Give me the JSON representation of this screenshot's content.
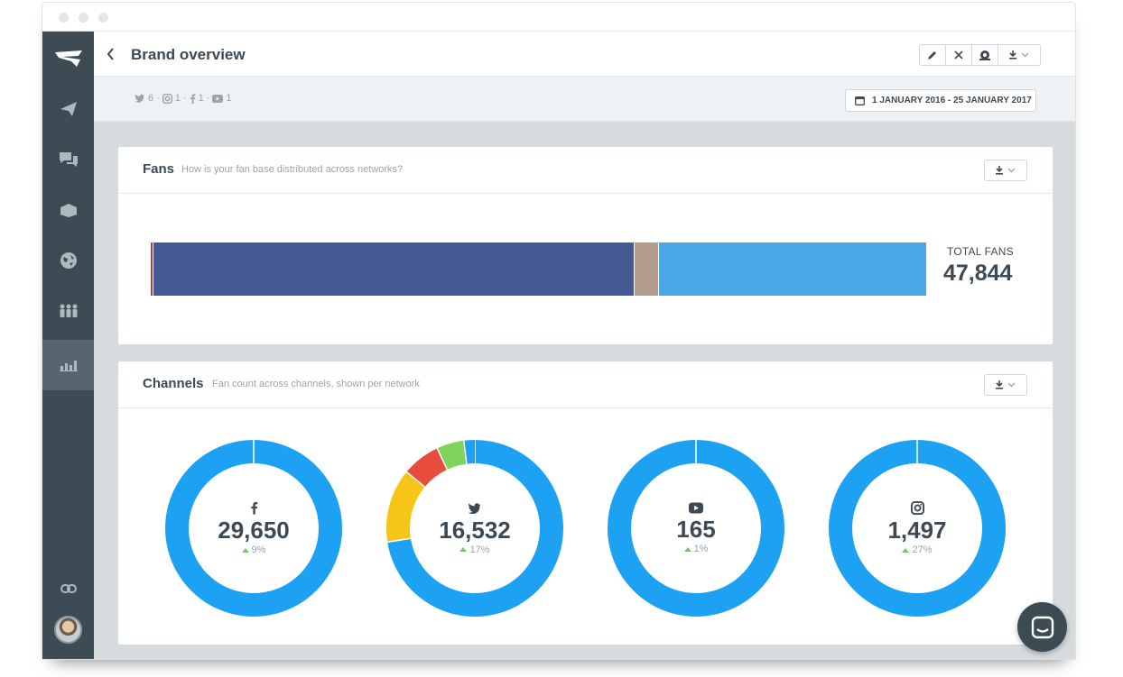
{
  "header": {
    "title": "Brand overview"
  },
  "filters": {
    "networks": [
      {
        "icon": "twitter-icon",
        "count": "6"
      },
      {
        "icon": "instagram-icon",
        "count": "1"
      },
      {
        "icon": "facebook-icon",
        "count": "1"
      },
      {
        "icon": "youtube-icon",
        "count": "1"
      }
    ],
    "date_range": "1 JANUARY 2016 - 25 JANUARY 2017"
  },
  "fans_card": {
    "title": "Fans",
    "subtitle": "How is your fan base distributed across networks?",
    "total_label": "TOTAL FANS",
    "total_value": "47,844",
    "distribution": [
      {
        "network": "youtube",
        "value": 165,
        "color": "#c0392b"
      },
      {
        "network": "facebook",
        "value": 29650,
        "color": "#425994"
      },
      {
        "network": "instagram",
        "value": 1497,
        "color": "#b39c8a"
      },
      {
        "network": "twitter",
        "value": 16532,
        "color": "#4aa8e6"
      }
    ]
  },
  "channels_card": {
    "title": "Channels",
    "subtitle": "Fan count across channels, shown per network",
    "channels": [
      {
        "network": "facebook",
        "icon": "facebook-icon",
        "value": "29,650",
        "change": "9%",
        "segments": [
          {
            "fraction": 1.0,
            "color": "#1da1f2"
          }
        ]
      },
      {
        "network": "twitter",
        "icon": "twitter-icon",
        "value": "16,532",
        "change": "17%",
        "segments": [
          {
            "fraction": 0.725,
            "color": "#1da1f2"
          },
          {
            "fraction": 0.135,
            "color": "#f5c518"
          },
          {
            "fraction": 0.07,
            "color": "#e74c3c"
          },
          {
            "fraction": 0.05,
            "color": "#7ed35a"
          },
          {
            "fraction": 0.02,
            "color": "#1da1f2"
          }
        ]
      },
      {
        "network": "youtube",
        "icon": "youtube-icon",
        "value": "165",
        "change": "1%",
        "segments": [
          {
            "fraction": 1.0,
            "color": "#1da1f2"
          }
        ]
      },
      {
        "network": "instagram",
        "icon": "instagram-icon",
        "value": "1,497",
        "change": "27%",
        "segments": [
          {
            "fraction": 1.0,
            "color": "#1da1f2"
          }
        ]
      }
    ]
  },
  "colors": {
    "sidebar": "#3c4b54",
    "donut_primary": "#1da1f2",
    "positive": "#7cc46b"
  }
}
